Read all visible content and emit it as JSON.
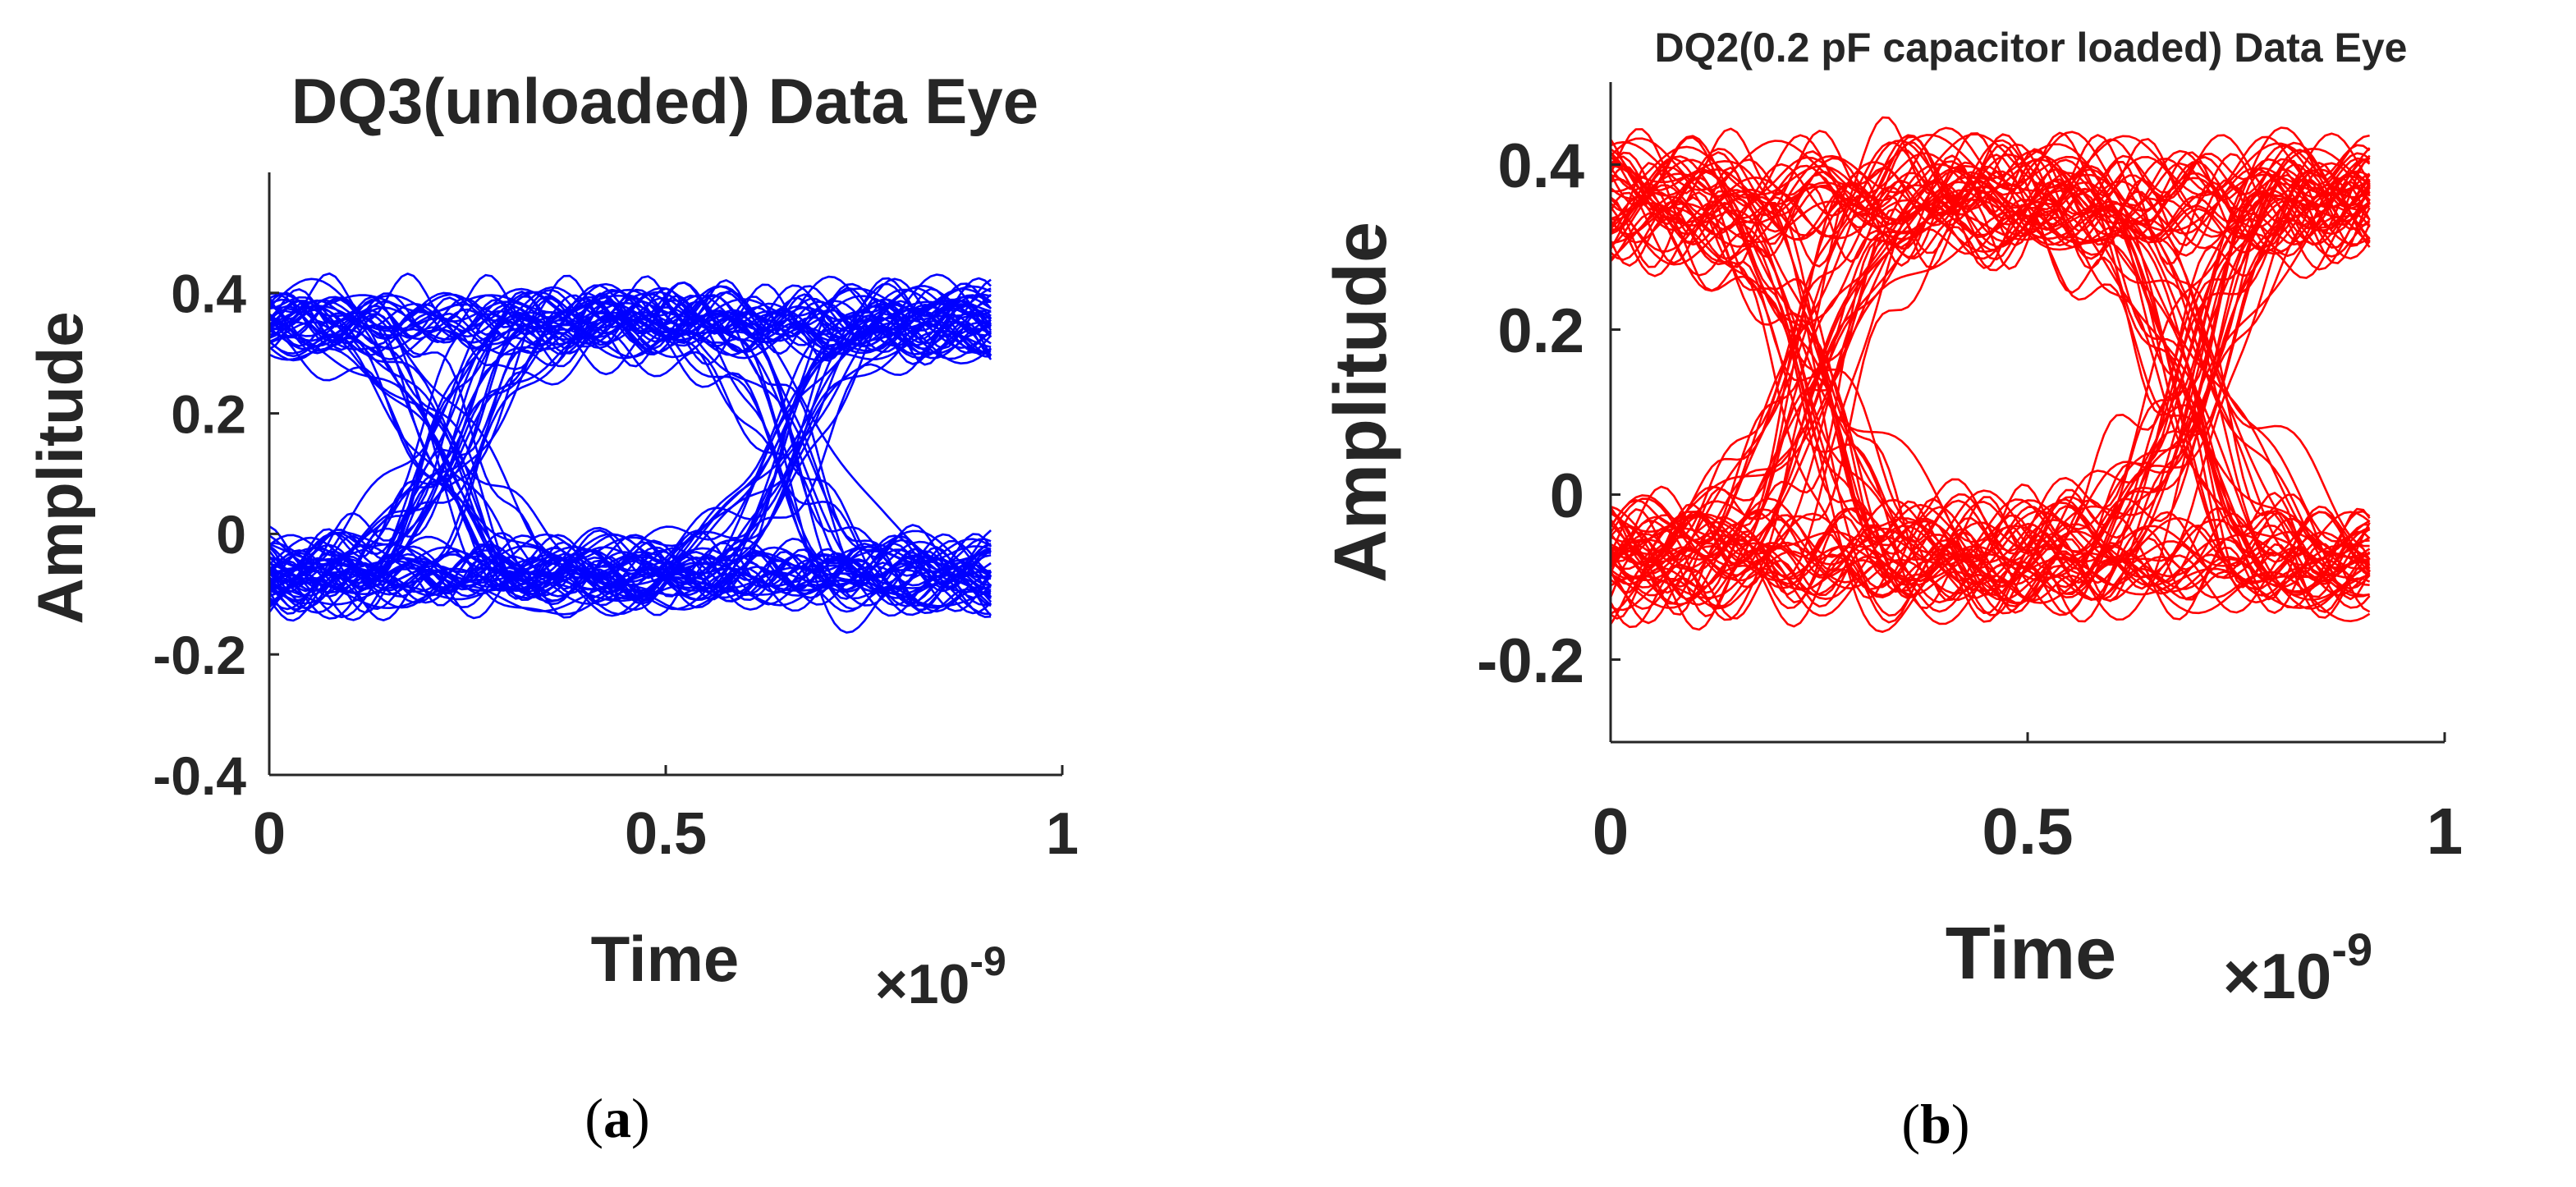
{
  "chart_data": [
    {
      "type": "line",
      "panel_label": "a",
      "title": "DQ3(unloaded) Data Eye",
      "xlabel": "Time",
      "x_exponent_label": "×10",
      "x_exponent": "-9",
      "ylabel": "Amplitude",
      "xlim": [
        0,
        1
      ],
      "ylim": [
        -0.4,
        0.6
      ],
      "x_data_range": [
        0,
        0.91
      ],
      "xticks": [
        0,
        0.5,
        1
      ],
      "xtick_labels": [
        "0",
        "0.5",
        "1"
      ],
      "yticks": [
        -0.4,
        -0.2,
        0,
        0.2,
        0.4
      ],
      "ytick_labels": [
        "-0.4",
        "-0.2",
        "0",
        "0.2",
        "0.4"
      ],
      "color": "#0000ff",
      "high_level": 0.35,
      "low_level": -0.07,
      "noise": 0.045,
      "crossing_times": [
        0.23,
        0.66
      ],
      "n_traces": 90,
      "grid": false,
      "legend": "none"
    },
    {
      "type": "line",
      "panel_label": "b",
      "title": "DQ2(0.2 pF capacitor loaded) Data Eye",
      "xlabel": "Time",
      "x_exponent_label": "×10",
      "x_exponent": "-9",
      "ylabel": "Amplitude",
      "xlim": [
        0,
        1
      ],
      "ylim": [
        -0.3,
        0.5
      ],
      "x_data_range": [
        0,
        0.91
      ],
      "xticks": [
        0,
        0.5,
        1
      ],
      "xtick_labels": [
        "0",
        "0.5",
        "1"
      ],
      "yticks": [
        -0.2,
        0,
        0.2,
        0.4
      ],
      "ytick_labels": [
        "-0.2",
        "0",
        "0.2",
        "0.4"
      ],
      "color": "#ff0000",
      "high_level": 0.36,
      "low_level": -0.08,
      "noise": 0.05,
      "crossing_times": [
        0.25,
        0.7
      ],
      "n_traces": 90,
      "grid": false,
      "legend": "none"
    }
  ]
}
